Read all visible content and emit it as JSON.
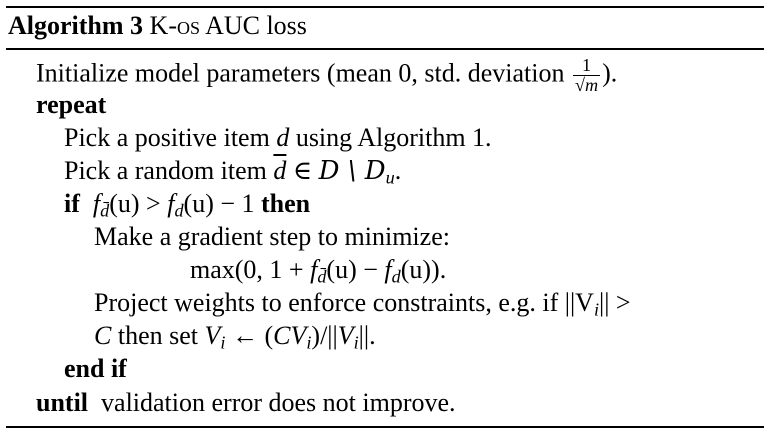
{
  "algorithm": {
    "caption_label": "Algorithm 3",
    "caption_title_prefix": "K-",
    "caption_title_sc": "os",
    "caption_title_suffix": " AUC loss",
    "lines": {
      "init_text": "Initialize model parameters (mean 0, std. deviation ",
      "init_frac_num": "1",
      "init_frac_den": "√m",
      "init_close": ").",
      "repeat_kw": "repeat",
      "pick_pos_prefix": "Pick a positive item ",
      "pick_pos_var": "d",
      "pick_pos_suffix": " using Algorithm 1.",
      "pick_rand_prefix": "Pick a random item ",
      "pick_rand_var": "d",
      "pick_rand_in": " ∈ ",
      "pick_rand_set": "D \\ D",
      "pick_rand_sub": "u",
      "pick_rand_end": ".",
      "if_kw": "if",
      "if_cond_f1": "f",
      "if_cond_sub1": "d̄",
      "if_cond_mid": "(u) > ",
      "if_cond_f2": "f",
      "if_cond_sub2": "d",
      "if_cond_end": "(u) − 1 ",
      "then_kw": "then",
      "grad_step": "Make a gradient step to minimize:",
      "max_prefix": "max(0, 1 + ",
      "max_f1": "f",
      "max_sub1": "d̄",
      "max_mid": "(u) − ",
      "max_f2": "f",
      "max_sub2": "d",
      "max_end": "(u)).",
      "project_line": "Project weights to enforce constraints, e.g. if ||V",
      "project_sub": "i",
      "project_end": "|| >",
      "then_line_c": "C",
      "then_line_text": " then set ",
      "then_line_v": "V",
      "then_line_sub": "i",
      "then_line_arrow": " ← (",
      "then_line_cv": "CV",
      "then_line_cv_sub": "i",
      "then_line_div": ")/||",
      "then_line_v2": "V",
      "then_line_v2_sub": "i",
      "then_line_close": "||.",
      "endif_kw": "end if",
      "until_kw": "until",
      "until_text": "validation error does not improve."
    }
  }
}
